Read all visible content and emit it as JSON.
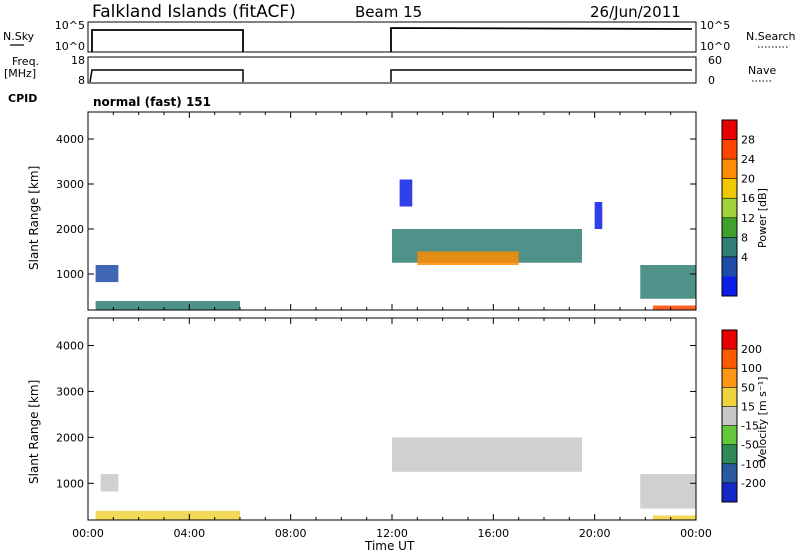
{
  "header": {
    "station": "Falkland Islands (fitACF)",
    "beam": "Beam 15",
    "date": "26/Jun/2011"
  },
  "mini_panels": {
    "nsky_label": "N.Sky",
    "nsky_ticks": [
      "10^5",
      "10^0"
    ],
    "nsearch_label": "N.Search",
    "nsearch_ticks": [
      "10^5",
      "10^0"
    ],
    "freq_label_1": "Freq.",
    "freq_label_2": "[MHz]",
    "freq_ticks": [
      "18",
      "8"
    ],
    "nave_label": "Nave",
    "nave_ticks": [
      "60",
      "0"
    ],
    "cpid_label": "CPID",
    "cpid_value": "normal (fast) 151"
  },
  "colors": {
    "power": [
      "#0a1ee6",
      "#1e4ca8",
      "#2f7f74",
      "#3fa02c",
      "#a0d23c",
      "#f0c800",
      "#ff8c00",
      "#ff4600",
      "#e60000"
    ],
    "velocity": [
      "#1428c8",
      "#2a5aa0",
      "#2e8b57",
      "#64c83c",
      "#c8c8c8",
      "#f0d23c",
      "#ff9614",
      "#ff5a00",
      "#e60000"
    ]
  },
  "chart_data": [
    {
      "type": "heatmap",
      "name": "power",
      "ylabel": "Slant Range [km]",
      "xlabel": "Time UT",
      "x_ticks": [
        "00:00",
        "04:00",
        "08:00",
        "12:00",
        "16:00",
        "20:00",
        "00:00"
      ],
      "xlim_hours": [
        0,
        24
      ],
      "ylim_km": [
        200,
        4600
      ],
      "y_ticks": [
        1000,
        2000,
        3000,
        4000
      ],
      "colorbar_label": "Power [dB]",
      "colorbar_ticks": [
        "28",
        "24",
        "20",
        "16",
        "12",
        "8",
        "4"
      ],
      "regions": [
        {
          "t0": 0.3,
          "t1": 1.2,
          "r0": 820,
          "r1": 1200,
          "level": 1
        },
        {
          "t0": 0.3,
          "t1": 6.0,
          "r0": 200,
          "r1": 400,
          "level": 2
        },
        {
          "t0": 12.0,
          "t1": 19.5,
          "r0": 1250,
          "r1": 2000,
          "level": 2
        },
        {
          "t0": 13.0,
          "t1": 17.0,
          "r0": 1200,
          "r1": 1500,
          "level": 6
        },
        {
          "t0": 12.3,
          "t1": 12.8,
          "r0": 2500,
          "r1": 3100,
          "level": 0
        },
        {
          "t0": 20.0,
          "t1": 20.3,
          "r0": 2000,
          "r1": 2600,
          "level": 0
        },
        {
          "t0": 21.8,
          "t1": 24.0,
          "r0": 450,
          "r1": 1200,
          "level": 2
        },
        {
          "t0": 22.3,
          "t1": 24.0,
          "r0": 200,
          "r1": 300,
          "level": 7
        }
      ]
    },
    {
      "type": "heatmap",
      "name": "velocity",
      "ylabel": "Slant Range [km]",
      "xlabel": "Time UT",
      "x_ticks": [
        "00:00",
        "04:00",
        "08:00",
        "12:00",
        "16:00",
        "20:00",
        "00:00"
      ],
      "xlim_hours": [
        0,
        24
      ],
      "ylim_km": [
        200,
        4600
      ],
      "y_ticks": [
        1000,
        2000,
        3000,
        4000
      ],
      "colorbar_label": "Velocity [m s⁻¹]",
      "colorbar_ticks": [
        "200",
        "100",
        "50",
        "15",
        "-15",
        "-50",
        "-100",
        "-200"
      ],
      "regions": [
        {
          "t0": 0.5,
          "t1": 1.2,
          "r0": 820,
          "r1": 1200,
          "level": 4
        },
        {
          "t0": 0.3,
          "t1": 6.0,
          "r0": 200,
          "r1": 400,
          "level": 5
        },
        {
          "t0": 12.0,
          "t1": 19.5,
          "r0": 1250,
          "r1": 2000,
          "level": 4
        },
        {
          "t0": 21.8,
          "t1": 24.0,
          "r0": 450,
          "r1": 1200,
          "level": 4
        },
        {
          "t0": 22.3,
          "t1": 24.0,
          "r0": 200,
          "r1": 300,
          "level": 5
        }
      ]
    }
  ]
}
